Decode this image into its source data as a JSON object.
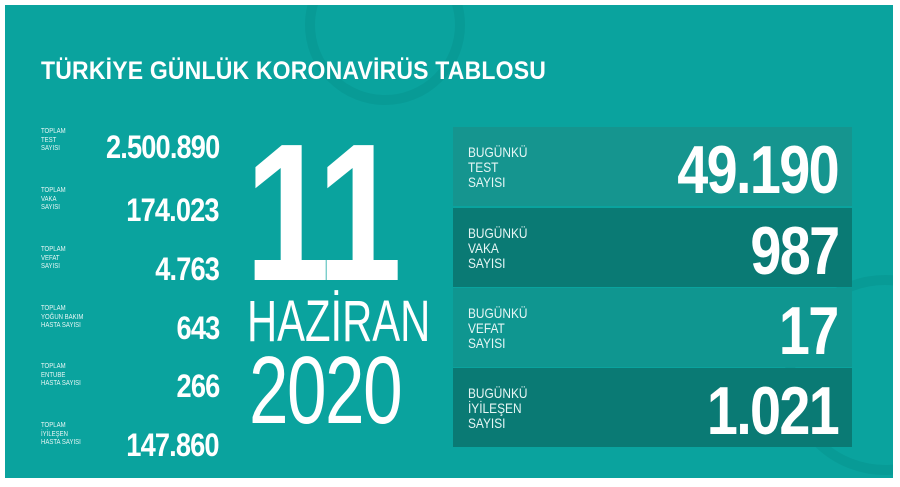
{
  "title": "TÜRKİYE GÜNLÜK KORONAVİRÜS TABLOSU",
  "colors": {
    "background": "#0aa39e",
    "box_light": "#15958f",
    "box_dark": "#0a7a74",
    "text": "#ffffff"
  },
  "totals": [
    {
      "label": "TOPLAM\nTEST\nSAYISI",
      "value": "2.500.890"
    },
    {
      "label": "TOPLAM\nVAKA\nSAYISI",
      "value": "174.023"
    },
    {
      "label": "TOPLAM\nVEFAT\nSAYISI",
      "value": "4.763"
    },
    {
      "label": "TOPLAM\nYOĞUN BAKIM\nHASTA SAYISI",
      "value": "643"
    },
    {
      "label": "TOPLAM\nENTUBE\nHASTA SAYISI",
      "value": "266"
    },
    {
      "label": "TOPLAM\nİYİLEŞEN\nHASTA SAYISI",
      "value": "147.860"
    }
  ],
  "date": {
    "day": "11",
    "month": "HAZİRAN",
    "year": "2020"
  },
  "today": [
    {
      "label": "BUGÜNKÜ\nTEST\nSAYISI",
      "value": "49.190"
    },
    {
      "label": "BUGÜNKÜ\nVAKA\nSAYISI",
      "value": "987"
    },
    {
      "label": "BUGÜNKÜ\nVEFAT\nSAYISI",
      "value": "17"
    },
    {
      "label": "BUGÜNKÜ\nİYİLEŞEN\nSAYISI",
      "value": "1.021"
    }
  ]
}
